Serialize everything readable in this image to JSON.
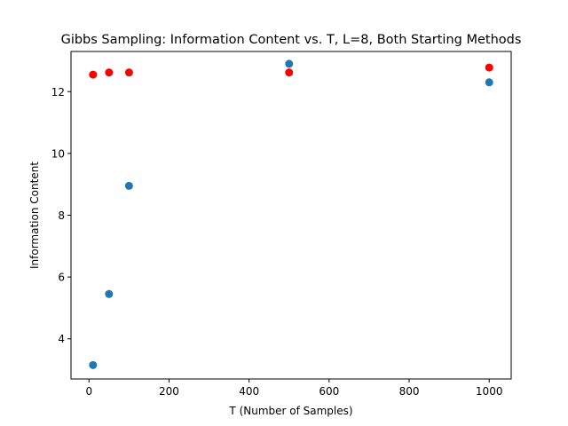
{
  "chart_data": {
    "type": "scatter",
    "title": "Gibbs Sampling: Information Content vs. T, L=8, Both Starting Methods",
    "xlabel": "T (Number of Samples)",
    "ylabel": "Information Content",
    "xlim": [
      -45,
      1055
    ],
    "ylim": [
      2.7,
      13.3
    ],
    "xticks": [
      0,
      200,
      400,
      600,
      800,
      1000
    ],
    "yticks": [
      4,
      6,
      8,
      10,
      12
    ],
    "grid": false,
    "series": [
      {
        "color": "#1f77b4",
        "x": [
          10,
          50,
          100,
          500,
          1000
        ],
        "y": [
          3.15,
          5.45,
          8.95,
          12.9,
          12.3
        ]
      },
      {
        "color": "#ff0000",
        "x": [
          10,
          50,
          100,
          500,
          1000
        ],
        "y": [
          12.55,
          12.62,
          12.62,
          12.62,
          12.78
        ]
      }
    ]
  }
}
